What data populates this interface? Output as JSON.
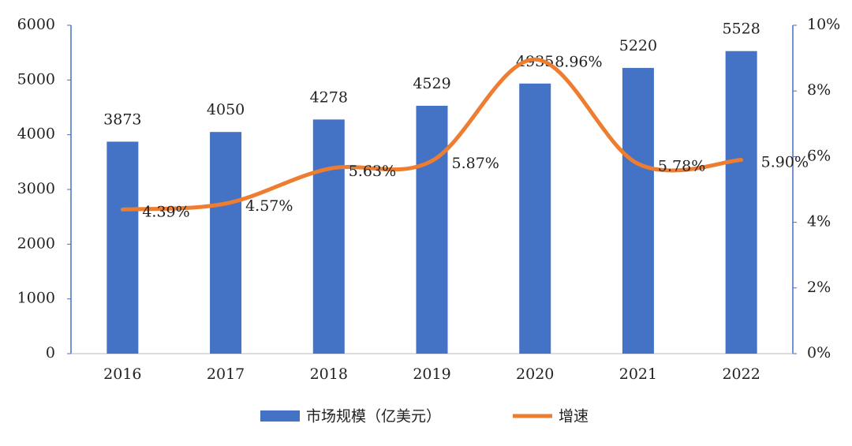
{
  "chart_data": {
    "type": "bar",
    "categories": [
      "2016",
      "2017",
      "2018",
      "2019",
      "2020",
      "2021",
      "2022"
    ],
    "series": [
      {
        "name": "市场规模（亿美元）",
        "type": "bar",
        "color": "#4472c4",
        "values": [
          3873,
          4050,
          4278,
          4529,
          4935,
          5220,
          5528
        ]
      },
      {
        "name": "增速",
        "type": "line",
        "axis": "y2",
        "color": "#ed7d31",
        "values": [
          4.39,
          4.57,
          5.63,
          5.87,
          8.96,
          5.78,
          5.9
        ],
        "value_labels": [
          "4.39%",
          "4.57%",
          "5.63%",
          "5.87%",
          "8.96%",
          "5.78%",
          "5.90%"
        ]
      }
    ],
    "ylim": [
      0,
      6000
    ],
    "yticks": [
      0,
      1000,
      2000,
      3000,
      4000,
      5000,
      6000
    ],
    "y2lim": [
      0,
      10
    ],
    "y2ticks": [
      {
        "value": 0,
        "label": "0%"
      },
      {
        "value": 2,
        "label": "2%"
      },
      {
        "value": 4,
        "label": "4%"
      },
      {
        "value": 6,
        "label": "6%"
      },
      {
        "value": 8,
        "label": "8%"
      },
      {
        "value": 10,
        "label": "10%"
      }
    ],
    "legend": "bottom"
  }
}
